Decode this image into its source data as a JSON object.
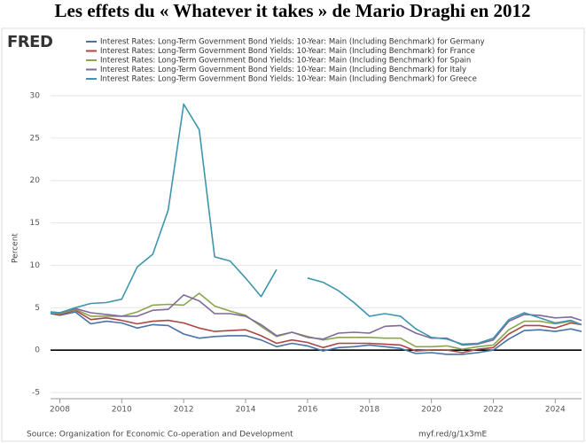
{
  "chart_data": {
    "type": "line",
    "title": "Les effets du « Whatever it takes » de Mario Draghi en 2012",
    "logo": "FRED",
    "y_label": "Percent",
    "source": "Source: Organization for Economic Co-operation and Development",
    "link": "myf.red/g/1x3mE",
    "x": [
      2007.7,
      2008,
      2008.5,
      2009,
      2009.5,
      2010,
      2010.5,
      2011,
      2011.5,
      2012,
      2012.5,
      2013,
      2013.5,
      2014,
      2014.5,
      2015,
      2015.5,
      2016,
      2016.5,
      2017,
      2017.5,
      2018,
      2018.5,
      2019,
      2019.5,
      2020,
      2020.5,
      2021,
      2021.5,
      2022,
      2022.5,
      2023,
      2023.5,
      2024,
      2024.5,
      2024.85
    ],
    "xlim": [
      2007.7,
      2024.85
    ],
    "xticks": [
      2008,
      2010,
      2012,
      2014,
      2016,
      2018,
      2020,
      2022,
      2024
    ],
    "ylim": [
      -5,
      30
    ],
    "yticks": [
      -5,
      0,
      5,
      10,
      15,
      20,
      25,
      30
    ],
    "grid": true,
    "series": [
      {
        "name": "Interest Rates: Long-Term Government Bond Yields: 10-Year: Main (Including Benchmark) for Germany",
        "color": "#4572a7",
        "values": [
          4.3,
          4.1,
          4.5,
          3.1,
          3.4,
          3.2,
          2.6,
          3.0,
          2.9,
          1.9,
          1.4,
          1.6,
          1.7,
          1.7,
          1.2,
          0.4,
          0.8,
          0.5,
          -0.1,
          0.3,
          0.4,
          0.6,
          0.4,
          0.2,
          -0.4,
          -0.3,
          -0.5,
          -0.5,
          -0.3,
          0.0,
          1.3,
          2.3,
          2.4,
          2.2,
          2.5,
          2.2
        ]
      },
      {
        "name": "Interest Rates: Long-Term Government Bond Yields: 10-Year: Main (Including Benchmark) for France",
        "color": "#aa4643",
        "values": [
          4.4,
          4.2,
          4.7,
          3.6,
          3.8,
          3.5,
          3.1,
          3.4,
          3.5,
          3.2,
          2.6,
          2.2,
          2.3,
          2.4,
          1.7,
          0.8,
          1.2,
          0.9,
          0.3,
          0.8,
          0.8,
          0.8,
          0.7,
          0.6,
          -0.1,
          0.0,
          0.0,
          -0.3,
          0.1,
          0.3,
          1.9,
          2.9,
          2.9,
          2.6,
          3.2,
          3.0
        ]
      },
      {
        "name": "Interest Rates: Long-Term Government Bond Yields: 10-Year: Main (Including Benchmark) for Spain",
        "color": "#89a54e",
        "values": [
          4.4,
          4.3,
          4.8,
          4.0,
          4.0,
          4.0,
          4.5,
          5.3,
          5.4,
          5.3,
          6.7,
          5.2,
          4.6,
          4.1,
          2.8,
          1.6,
          2.1,
          1.6,
          1.2,
          1.5,
          1.5,
          1.5,
          1.4,
          1.4,
          0.4,
          0.4,
          0.5,
          0.1,
          0.4,
          0.6,
          2.4,
          3.4,
          3.4,
          3.1,
          3.4,
          3.0
        ]
      },
      {
        "name": "Interest Rates: Long-Term Government Bond Yields: 10-Year: Main (Including Benchmark) for Italy",
        "color": "#80699b",
        "values": [
          4.5,
          4.4,
          4.9,
          4.4,
          4.2,
          4.0,
          4.0,
          4.7,
          4.8,
          6.5,
          5.8,
          4.3,
          4.3,
          4.0,
          3.0,
          1.7,
          2.1,
          1.5,
          1.3,
          2.0,
          2.1,
          2.0,
          2.8,
          2.9,
          2.0,
          1.4,
          1.4,
          0.6,
          0.7,
          1.2,
          3.4,
          4.2,
          4.1,
          3.8,
          3.9,
          3.5
        ]
      },
      {
        "name": "Interest Rates: Long-Term Government Bond Yields: 10-Year: Main (Including Benchmark) for Greece",
        "color": "#3d96ae",
        "values": [
          4.5,
          4.4,
          5.0,
          5.5,
          5.6,
          6.0,
          9.8,
          11.3,
          16.5,
          29.0,
          26,
          11,
          10.5,
          8.5,
          6.3,
          9.5,
          null,
          8.5,
          8.0,
          7.0,
          5.6,
          4.0,
          4.3,
          4.0,
          2.5,
          1.5,
          1.3,
          0.7,
          0.8,
          1.4,
          3.6,
          4.4,
          3.8,
          3.2,
          3.5,
          3.0
        ]
      }
    ]
  }
}
